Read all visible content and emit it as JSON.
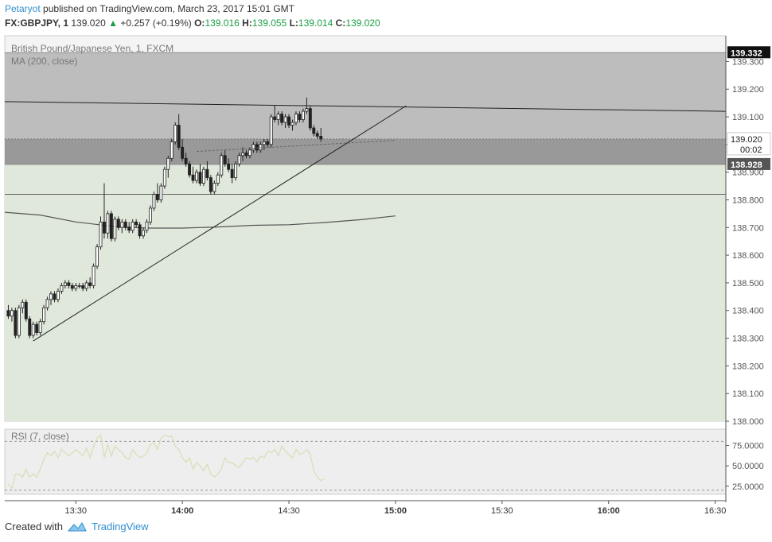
{
  "header": {
    "user": "Petaryot",
    "published_text": "published on TradingView.com, March 23, 2017 15:01 GMT",
    "symbol": "FX:GBPJPY, 1",
    "last": "139.020",
    "change": "+0.257 (+0.19%)",
    "o_label": "O:",
    "o_value": "139.016",
    "h_label": "H:",
    "h_value": "139.055",
    "l_label": "L:",
    "l_value": "139.014",
    "c_label": "C:",
    "c_value": "139.020"
  },
  "legend": {
    "title": "British Pound/Japanese Yen, 1, FXCM",
    "ma": "MA (200, close)",
    "rsi": "RSI (7, close)"
  },
  "price_labels": {
    "top": "139.332",
    "current": "139.020",
    "countdown": "00:02",
    "bottom": "138.928"
  },
  "footer": {
    "created_with": "Created with",
    "brand": "TradingView"
  },
  "colors": {
    "accent": "#2e8fd0",
    "up": "#1b9e46",
    "zone_upper": "#bdbdbd",
    "zone_middle": "#999999",
    "zone_lower": "#dfe8da"
  },
  "chart_data": {
    "type": "candlestick",
    "ylim": [
      138.0,
      139.35
    ],
    "yticks": [
      "139.300",
      "139.200",
      "139.100",
      "139.000",
      "138.900",
      "138.800",
      "138.700",
      "138.600",
      "138.500",
      "138.400",
      "138.300",
      "138.200",
      "138.100",
      "138.000"
    ],
    "xticks": [
      "13:30",
      "14:00",
      "14:30",
      "15:00",
      "15:30",
      "16:00",
      "16:30"
    ],
    "time_start": "13:10",
    "time_end": "16:33",
    "zones": [
      {
        "from": 139.02,
        "to": 139.332,
        "color": "#bdbdbd"
      },
      {
        "from": 138.928,
        "to": 139.02,
        "color": "#999999"
      },
      {
        "from": 138.0,
        "to": 138.928,
        "color": "#dfe8da"
      }
    ],
    "hlines": [
      138.82
    ],
    "trendlines": [
      {
        "t1": "13:10",
        "p1": 139.155,
        "t2": "16:33",
        "p2": 139.12
      },
      {
        "t1": "13:18",
        "p1": 138.29,
        "t2": "15:03",
        "p2": 139.14
      },
      {
        "t1": "14:04",
        "p1": 138.975,
        "t2": "15:00",
        "p2": 139.015
      }
    ],
    "ma": {
      "t": [
        "13:10",
        "13:20",
        "13:30",
        "13:40",
        "13:50",
        "14:00",
        "14:10",
        "14:20",
        "14:30",
        "14:40",
        "14:50",
        "15:00"
      ],
      "values": [
        138.755,
        138.745,
        138.72,
        138.705,
        138.698,
        138.698,
        138.702,
        138.708,
        138.71,
        138.718,
        138.728,
        138.742
      ]
    },
    "candles": {
      "start": "13:11",
      "interval_min": 1,
      "ohlc": [
        [
          138.4,
          138.42,
          138.37,
          138.38
        ],
        [
          138.38,
          138.41,
          138.36,
          138.4
        ],
        [
          138.4,
          138.41,
          138.3,
          138.31
        ],
        [
          138.31,
          138.42,
          138.3,
          138.41
        ],
        [
          138.41,
          138.44,
          138.39,
          138.43
        ],
        [
          138.43,
          138.44,
          138.36,
          138.37
        ],
        [
          138.37,
          138.38,
          138.3,
          138.31
        ],
        [
          138.31,
          138.36,
          138.3,
          138.35
        ],
        [
          138.35,
          138.36,
          138.31,
          138.32
        ],
        [
          138.32,
          138.37,
          138.31,
          138.36
        ],
        [
          138.36,
          138.42,
          138.35,
          138.41
        ],
        [
          138.41,
          138.45,
          138.4,
          138.44
        ],
        [
          138.44,
          138.47,
          138.42,
          138.46
        ],
        [
          138.46,
          138.47,
          138.43,
          138.44
        ],
        [
          138.44,
          138.48,
          138.43,
          138.47
        ],
        [
          138.47,
          138.5,
          138.46,
          138.49
        ],
        [
          138.49,
          138.51,
          138.48,
          138.5
        ],
        [
          138.5,
          138.51,
          138.48,
          138.49
        ],
        [
          138.49,
          138.5,
          138.47,
          138.48
        ],
        [
          138.48,
          138.5,
          138.47,
          138.49
        ],
        [
          138.49,
          138.5,
          138.48,
          138.49
        ],
        [
          138.49,
          138.5,
          138.47,
          138.48
        ],
        [
          138.48,
          138.51,
          138.47,
          138.5
        ],
        [
          138.5,
          138.52,
          138.48,
          138.49
        ],
        [
          138.49,
          138.57,
          138.48,
          138.56
        ],
        [
          138.56,
          138.64,
          138.55,
          138.63
        ],
        [
          138.63,
          138.74,
          138.62,
          138.72
        ],
        [
          138.72,
          138.86,
          138.66,
          138.68
        ],
        [
          138.68,
          138.76,
          138.66,
          138.75
        ],
        [
          138.75,
          138.76,
          138.65,
          138.66
        ],
        [
          138.66,
          138.74,
          138.65,
          138.73
        ],
        [
          138.73,
          138.74,
          138.69,
          138.7
        ],
        [
          138.7,
          138.73,
          138.68,
          138.72
        ],
        [
          138.72,
          138.73,
          138.69,
          138.7
        ],
        [
          138.7,
          138.72,
          138.68,
          138.69
        ],
        [
          138.69,
          138.73,
          138.68,
          138.72
        ],
        [
          138.72,
          138.73,
          138.7,
          138.71
        ],
        [
          138.71,
          138.72,
          138.66,
          138.67
        ],
        [
          138.67,
          138.7,
          138.66,
          138.69
        ],
        [
          138.69,
          138.73,
          138.68,
          138.72
        ],
        [
          138.72,
          138.78,
          138.71,
          138.77
        ],
        [
          138.77,
          138.83,
          138.76,
          138.82
        ],
        [
          138.82,
          138.86,
          138.79,
          138.8
        ],
        [
          138.8,
          138.86,
          138.79,
          138.85
        ],
        [
          138.85,
          138.92,
          138.84,
          138.91
        ],
        [
          138.91,
          138.96,
          138.88,
          138.95
        ],
        [
          138.95,
          139.02,
          138.94,
          139.01
        ],
        [
          139.01,
          139.08,
          139.0,
          139.07
        ],
        [
          139.07,
          139.11,
          138.98,
          138.99
        ],
        [
          138.99,
          139.02,
          138.94,
          138.95
        ],
        [
          138.95,
          138.97,
          138.92,
          138.93
        ],
        [
          138.93,
          138.94,
          138.88,
          138.89
        ],
        [
          138.89,
          138.92,
          138.86,
          138.87
        ],
        [
          138.87,
          138.91,
          138.86,
          138.9
        ],
        [
          138.9,
          138.93,
          138.85,
          138.86
        ],
        [
          138.86,
          138.92,
          138.85,
          138.91
        ],
        [
          138.91,
          138.94,
          138.87,
          138.88
        ],
        [
          138.88,
          138.89,
          138.82,
          138.83
        ],
        [
          138.83,
          138.87,
          138.82,
          138.86
        ],
        [
          138.86,
          138.9,
          138.85,
          138.89
        ],
        [
          138.89,
          138.97,
          138.88,
          138.96
        ],
        [
          138.96,
          138.98,
          138.92,
          138.93
        ],
        [
          138.93,
          138.95,
          138.9,
          138.91
        ],
        [
          138.91,
          138.93,
          138.86,
          138.88
        ],
        [
          138.88,
          138.94,
          138.87,
          138.93
        ],
        [
          138.93,
          138.97,
          138.92,
          138.96
        ],
        [
          138.96,
          138.99,
          138.94,
          138.97
        ],
        [
          138.97,
          138.98,
          138.95,
          138.96
        ],
        [
          138.96,
          138.99,
          138.95,
          138.98
        ],
        [
          138.98,
          139.01,
          138.97,
          139.0
        ],
        [
          139.0,
          139.01,
          138.97,
          138.98
        ],
        [
          138.98,
          139.01,
          138.97,
          139.0
        ],
        [
          139.0,
          139.02,
          138.98,
          139.01
        ],
        [
          139.01,
          139.02,
          138.99,
          139.0
        ],
        [
          139.0,
          139.11,
          138.99,
          139.1
        ],
        [
          139.1,
          139.14,
          139.08,
          139.09
        ],
        [
          139.09,
          139.12,
          139.07,
          139.11
        ],
        [
          139.11,
          139.12,
          139.07,
          139.08
        ],
        [
          139.08,
          139.11,
          139.06,
          139.1
        ],
        [
          139.1,
          139.11,
          139.06,
          139.07
        ],
        [
          139.07,
          139.09,
          139.05,
          139.08
        ],
        [
          139.08,
          139.12,
          139.07,
          139.11
        ],
        [
          139.11,
          139.12,
          139.08,
          139.09
        ],
        [
          139.09,
          139.13,
          139.08,
          139.12
        ],
        [
          139.12,
          139.17,
          139.11,
          139.13
        ],
        [
          139.13,
          139.14,
          139.05,
          139.06
        ],
        [
          139.06,
          139.07,
          139.03,
          139.04
        ],
        [
          139.04,
          139.05,
          139.02,
          139.03
        ],
        [
          139.03,
          139.06,
          139.01,
          139.02
        ]
      ]
    },
    "rsi": {
      "ylim": [
        15,
        95
      ],
      "levels": [
        80,
        20
      ],
      "yticks": [
        "75.0000",
        "50.0000",
        "25.0000"
      ],
      "values": [
        28,
        22,
        40,
        40,
        36,
        46,
        36,
        40,
        36,
        46,
        58,
        66,
        62,
        68,
        60,
        70,
        66,
        62,
        66,
        70,
        66,
        62,
        72,
        60,
        74,
        84,
        88,
        60,
        76,
        62,
        74,
        70,
        66,
        60,
        58,
        70,
        64,
        60,
        62,
        66,
        76,
        78,
        70,
        84,
        88,
        86,
        86,
        74,
        70,
        60,
        54,
        60,
        46,
        54,
        50,
        44,
        52,
        40,
        36,
        40,
        46,
        60,
        54,
        54,
        50,
        48,
        54,
        60,
        58,
        60,
        55,
        62,
        60,
        68,
        66,
        70,
        62,
        74,
        68,
        64,
        60,
        70,
        64,
        66,
        70,
        64,
        44,
        36,
        32,
        34
      ]
    }
  }
}
